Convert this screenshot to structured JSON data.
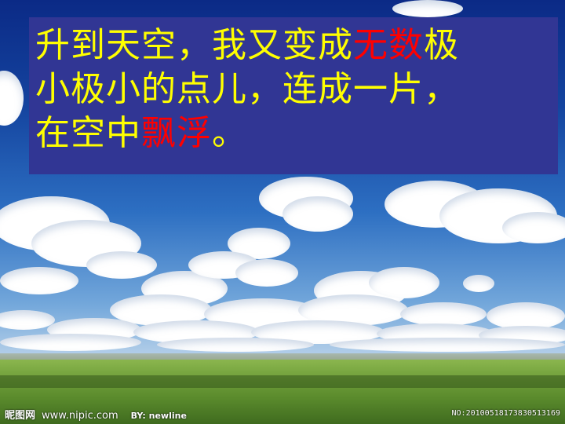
{
  "slide": {
    "line1": {
      "a": "升到天空，我又变成",
      "b": "无数",
      "c": "极"
    },
    "line2": {
      "a": "小极小的点儿，连成一片，"
    },
    "line3": {
      "a": "在空中",
      "b": "飘浮",
      "c": "。"
    }
  },
  "watermark": {
    "brand": "昵图网",
    "site": "www.nipic.com",
    "by": "BY: newline",
    "image_id": "NO:20100518173830513169"
  }
}
